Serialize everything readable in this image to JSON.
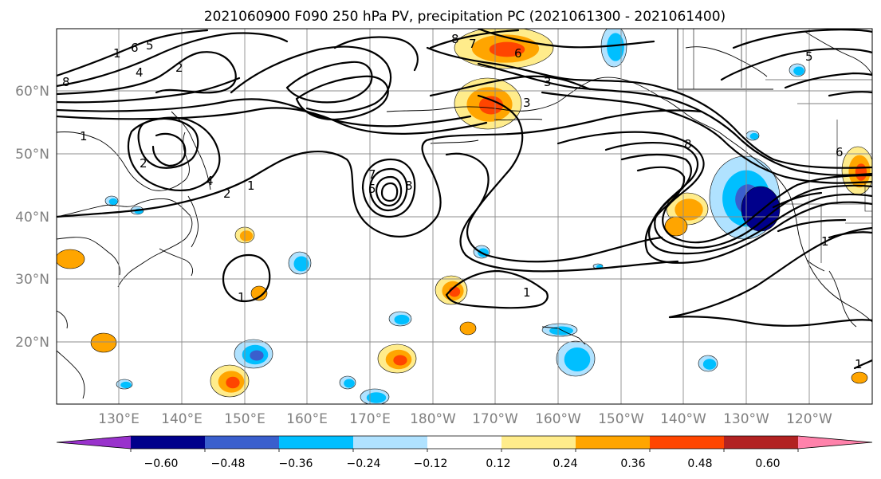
{
  "title": "2021060900 F090 250 hPa PV, precipitation PC (2021061300 - 2021061400)",
  "lat_labels": [
    "20°N",
    "30°N",
    "40°N",
    "50°N",
    "60°N"
  ],
  "lon_labels": [
    "130°E",
    "140°E",
    "150°E",
    "160°E",
    "170°E",
    "180°W",
    "170°W",
    "160°W",
    "150°W",
    "140°W",
    "130°W",
    "120°W"
  ],
  "colorbar": {
    "ticks": [
      "−0.60",
      "−0.48",
      "−0.36",
      "−0.24",
      "−0.12",
      "0.12",
      "0.24",
      "0.36",
      "0.48",
      "0.60"
    ],
    "colors": [
      "#9932cc",
      "#00008b",
      "#3a5fcd",
      "#00bfff",
      "#b0e2ff",
      "#ffffff",
      "#ffec8b",
      "#ffa500",
      "#ff4500",
      "#b22222",
      "#ff82ab"
    ]
  },
  "contour_labels": [
    "8",
    "6",
    "5",
    "4",
    "1",
    "2",
    "1",
    "2",
    "4",
    "2",
    "1",
    "8",
    "7",
    "6",
    "3",
    "3",
    "7",
    "5",
    "8",
    "8",
    "6",
    "5",
    "1",
    "1",
    "1",
    "1"
  ],
  "palette": {
    "light_blue": "#b0e2ff",
    "blue": "#00bfff",
    "dark_blue": "#3a5fcd",
    "navy": "#00008b",
    "yellow": "#ffec8b",
    "orange": "#ffa500",
    "red": "#ff4500"
  }
}
